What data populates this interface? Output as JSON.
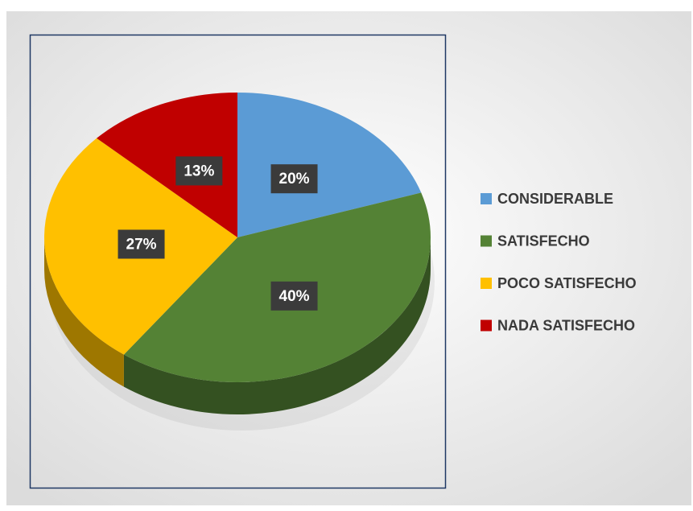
{
  "chart_data": {
    "type": "pie",
    "categories": [
      "CONSIDERABLE",
      "SATISFECHO",
      "POCO SATISFECHO",
      "NADA SATISFECHO"
    ],
    "values": [
      20,
      40,
      27,
      13
    ],
    "value_labels": [
      "20%",
      "40%",
      "27%",
      "13%"
    ],
    "colors": [
      "#5b9bd5",
      "#548235",
      "#ffc000",
      "#c00000"
    ],
    "legend": "right"
  }
}
